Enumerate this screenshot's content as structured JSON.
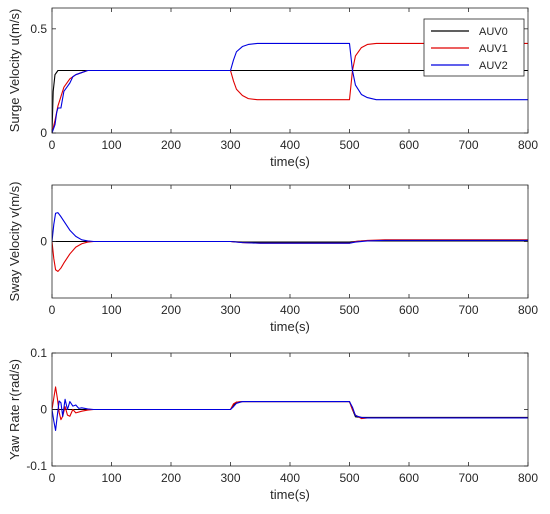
{
  "series_colors": {
    "AUV0": "#000000",
    "AUV1": "#e00000",
    "AUV2": "#0000e0"
  },
  "chart_data": [
    {
      "type": "line",
      "xlabel": "time(s)",
      "ylabel": "Surge Velocity u(m/s)",
      "xlim": [
        0,
        800
      ],
      "ylim": [
        0,
        0.6
      ],
      "xticks": [
        "0",
        "100",
        "200",
        "300",
        "400",
        "500",
        "600",
        "700",
        "800"
      ],
      "yticks": [
        {
          "value": 0,
          "label": "0"
        },
        {
          "value": 0.5,
          "label": "0.5"
        }
      ],
      "legend": {
        "position": "top-right",
        "entries": [
          "AUV0",
          "AUV1",
          "AUV2"
        ]
      },
      "series": [
        {
          "name": "AUV0",
          "x": [
            0,
            2,
            5,
            10,
            20,
            300,
            500,
            800
          ],
          "y": [
            0,
            0.2,
            0.28,
            0.3,
            0.3,
            0.3,
            0.3,
            0.3
          ]
        },
        {
          "name": "AUV1",
          "x": [
            0,
            5,
            10,
            20,
            30,
            40,
            50,
            60,
            300,
            305,
            310,
            320,
            330,
            345,
            500,
            505,
            510,
            520,
            530,
            545,
            800
          ],
          "y": [
            0,
            0.06,
            0.13,
            0.22,
            0.26,
            0.28,
            0.29,
            0.3,
            0.3,
            0.25,
            0.21,
            0.18,
            0.165,
            0.16,
            0.16,
            0.3,
            0.37,
            0.41,
            0.425,
            0.43,
            0.43
          ]
        },
        {
          "name": "AUV2",
          "x": [
            0,
            5,
            8,
            10,
            15,
            20,
            25,
            30,
            35,
            40,
            50,
            60,
            300,
            305,
            310,
            320,
            330,
            345,
            500,
            505,
            510,
            520,
            530,
            545,
            800
          ],
          "y": [
            0,
            0.04,
            0.1,
            0.12,
            0.12,
            0.2,
            0.22,
            0.24,
            0.27,
            0.28,
            0.29,
            0.3,
            0.3,
            0.35,
            0.39,
            0.415,
            0.425,
            0.43,
            0.43,
            0.3,
            0.23,
            0.185,
            0.17,
            0.16,
            0.16
          ]
        }
      ]
    },
    {
      "type": "line",
      "xlabel": "time(s)",
      "ylabel": "Sway Velocity v(m/s)",
      "xlim": [
        0,
        800
      ],
      "ylim": [
        -1,
        1
      ],
      "xticks": [
        "0",
        "100",
        "200",
        "300",
        "400",
        "500",
        "600",
        "700",
        "800"
      ],
      "yticks": [
        {
          "value": 0,
          "label": "0"
        }
      ],
      "series": [
        {
          "name": "AUV0",
          "x": [
            0,
            300,
            320,
            500,
            520,
            800
          ],
          "y": [
            0,
            0,
            -0.01,
            -0.01,
            0.01,
            0.01
          ]
        },
        {
          "name": "AUV1",
          "x": [
            0,
            3,
            6,
            10,
            15,
            20,
            30,
            40,
            50,
            60,
            70,
            300,
            320,
            350,
            500,
            510,
            530,
            560,
            800
          ],
          "y": [
            0,
            -0.3,
            -0.5,
            -0.53,
            -0.47,
            -0.38,
            -0.22,
            -0.1,
            -0.04,
            -0.01,
            0,
            0,
            -0.02,
            -0.03,
            -0.03,
            0.0,
            0.02,
            0.03,
            0.03
          ]
        },
        {
          "name": "AUV2",
          "x": [
            0,
            3,
            6,
            10,
            15,
            20,
            30,
            40,
            50,
            60,
            70,
            300,
            320,
            350,
            500,
            510,
            530,
            560,
            800
          ],
          "y": [
            0,
            0.3,
            0.5,
            0.51,
            0.44,
            0.36,
            0.2,
            0.09,
            0.03,
            0.01,
            0,
            0,
            -0.02,
            -0.03,
            -0.03,
            -0.01,
            0.01,
            0.02,
            0.02
          ]
        }
      ]
    },
    {
      "type": "line",
      "xlabel": "time(s)",
      "ylabel": "Yaw Rate r(rad/s)",
      "xlim": [
        0,
        800
      ],
      "ylim": [
        -0.1,
        0.1
      ],
      "xticks": [
        "0",
        "100",
        "200",
        "300",
        "400",
        "500",
        "600",
        "700",
        "800"
      ],
      "yticks": [
        {
          "value": -0.1,
          "label": "-0.1"
        },
        {
          "value": 0,
          "label": "0"
        },
        {
          "value": 0.1,
          "label": "0.1"
        }
      ],
      "series": [
        {
          "name": "AUV0",
          "x": [
            0,
            300,
            305,
            310,
            320,
            500,
            505,
            510,
            520,
            800
          ],
          "y": [
            0,
            0,
            0.008,
            0.013,
            0.014,
            0.014,
            0.0,
            -0.013,
            -0.014,
            -0.014
          ]
        },
        {
          "name": "AUV1",
          "x": [
            0,
            3,
            6,
            9,
            12,
            15,
            18,
            22,
            26,
            30,
            35,
            40,
            50,
            60,
            70,
            300,
            305,
            310,
            320,
            500,
            505,
            510,
            520,
            530,
            800
          ],
          "y": [
            0,
            0.02,
            0.04,
            0.02,
            -0.005,
            -0.018,
            -0.012,
            0.005,
            -0.01,
            -0.012,
            0.0,
            -0.006,
            -0.003,
            -0.001,
            0,
            0,
            0.01,
            0.013,
            0.014,
            0.014,
            0.0,
            -0.01,
            -0.016,
            -0.015,
            -0.015
          ]
        },
        {
          "name": "AUV2",
          "x": [
            0,
            3,
            6,
            9,
            12,
            15,
            18,
            22,
            26,
            30,
            35,
            40,
            45,
            50,
            60,
            70,
            300,
            305,
            310,
            320,
            500,
            505,
            510,
            520,
            530,
            800
          ],
          "y": [
            0,
            -0.02,
            -0.037,
            -0.01,
            0.015,
            0.012,
            -0.012,
            0.018,
            0.0,
            0.014,
            0.006,
            0.008,
            0.002,
            0.003,
            0.001,
            0,
            0,
            0.005,
            0.011,
            0.014,
            0.014,
            0.004,
            -0.011,
            -0.014,
            -0.015,
            -0.015
          ]
        }
      ]
    }
  ]
}
